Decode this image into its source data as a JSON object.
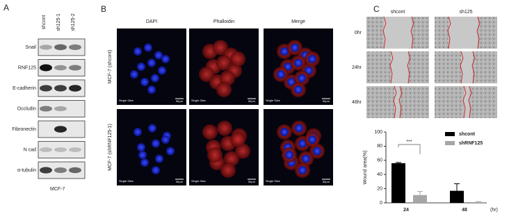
{
  "panel_a": {
    "label": "A",
    "lanes": [
      "shcont",
      "sh125-1",
      "sh125-2"
    ],
    "proteins": [
      "Snail",
      "RNF125",
      "E-cadherin",
      "Occludin",
      "Fibronectin",
      "N cad",
      "α-tubulin"
    ],
    "cell_line": "MCF-7"
  },
  "panel_b": {
    "label": "B",
    "columns": [
      "DAPI",
      "Phalloidin",
      "Merge"
    ],
    "rows": [
      "MCF-7 (shcont)",
      "MCF-7 (shRNF125-1)"
    ],
    "slice_label": "Single Slice",
    "scale_label": "50µm"
  },
  "panel_c": {
    "label": "C",
    "columns": [
      "shcont",
      "sh125"
    ],
    "rows": [
      "0hr",
      "24hr",
      "48hr"
    ]
  },
  "chart_data": {
    "type": "bar",
    "categories": [
      "24",
      "48"
    ],
    "x_label": "(hr)",
    "y_label": "Wound area(%)",
    "series": [
      {
        "name": "shcont",
        "color": "#000000",
        "values": [
          56,
          17
        ],
        "errors": [
          1,
          10
        ]
      },
      {
        "name": "shRNF125",
        "color": "#a6a6a6",
        "values": [
          11,
          1
        ],
        "errors": [
          5,
          0.7
        ]
      }
    ],
    "ylim": [
      0,
      100
    ],
    "yticks": [
      0,
      20,
      40,
      60,
      80,
      100
    ],
    "annotation": "***",
    "legend": "upper right"
  }
}
